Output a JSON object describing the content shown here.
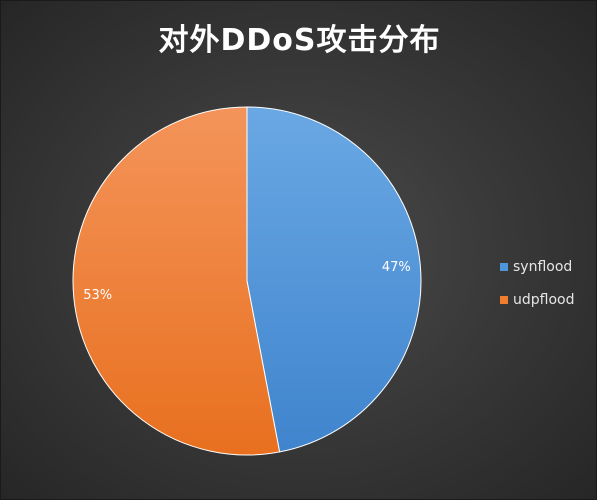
{
  "chart_data": {
    "type": "pie",
    "title": "对外DDoS攻击分布",
    "categories": [
      "synflood",
      "udpflood"
    ],
    "values": [
      47,
      53
    ],
    "labels": [
      "47%",
      "53%"
    ],
    "colors": [
      "#4f95d9",
      "#f07e2c"
    ],
    "start_angle": "12 o'clock, clockwise",
    "legend_position": "right"
  }
}
